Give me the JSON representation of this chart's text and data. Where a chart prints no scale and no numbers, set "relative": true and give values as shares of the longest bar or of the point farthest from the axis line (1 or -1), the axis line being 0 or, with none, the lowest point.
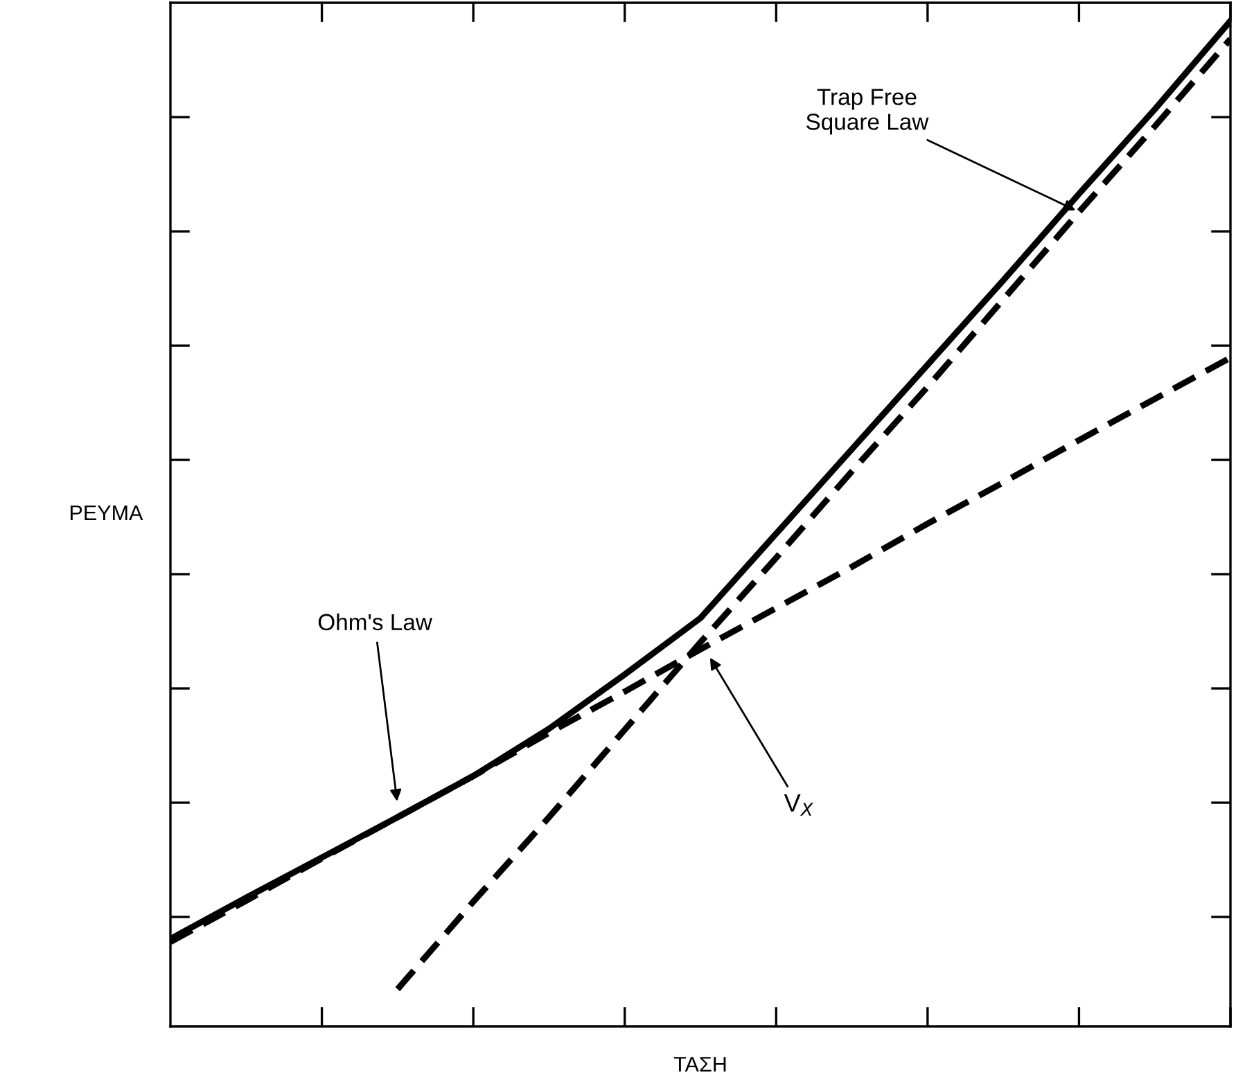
{
  "chart_data": {
    "type": "line",
    "relative": true,
    "xlabel": "ΤΑΣΗ",
    "ylabel": "ΡΕΥΜΑ",
    "categories": [
      null,
      null,
      null,
      null,
      null,
      null,
      null,
      null,
      null,
      null,
      null,
      null,
      null,
      null,
      null
    ],
    "series": [
      {
        "color": "#000000",
        "line_style": "solid",
        "values": [
          0.087,
          0.128,
          0.168,
          0.208,
          0.249,
          0.296,
          0.35,
          0.406,
          0.49,
          0.574,
          0.658,
          0.742,
          0.828,
          0.912,
          1
        ]
      },
      {
        "color": "#000000",
        "line_style": "dashed",
        "values": [
          0.084,
          0.125,
          0.167,
          0.208,
          0.249,
          0.292,
          0.333,
          0.375,
          0.416,
          0.457,
          0.5,
          0.541,
          0.583,
          0.624,
          0.665
        ]
      },
      {
        "color": "#000000",
        "line_style": "dashed",
        "values": [
          null,
          null,
          null,
          0.037,
          0.124,
          0.208,
          0.295,
          0.382,
          0.466,
          0.552,
          0.636,
          0.723,
          0.81,
          0.895,
          0.982
        ]
      }
    ],
    "annotations": [
      "Trap Free\nSquare Law",
      "Ohm's Law",
      "V$_{X}$"
    ],
    "grid": false,
    "legend": false
  }
}
